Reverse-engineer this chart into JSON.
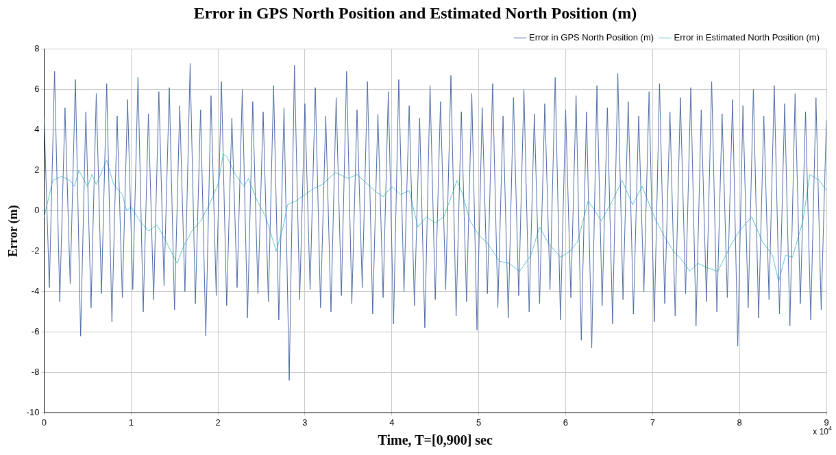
{
  "chart_data": {
    "type": "line",
    "title": "Error in GPS North Position and Estimated North Position (m)",
    "xlabel": "Time, T=[0,900] sec",
    "ylabel": "Error (m)",
    "xlim": [
      0,
      9
    ],
    "xticks": [
      0,
      1,
      2,
      3,
      4,
      5,
      6,
      7,
      8,
      9
    ],
    "ylim": [
      -10,
      8
    ],
    "yticks": [
      -10,
      -8,
      -6,
      -4,
      -2,
      0,
      2,
      4,
      6,
      8
    ],
    "grid": true,
    "legend": "top right",
    "annotations": [
      "x 10$^{4}$"
    ],
    "series": [
      {
        "name": "Error in GPS North Position (m)",
        "color": "#4a6aa5",
        "x": [
          0,
          0.06,
          0.12,
          0.18,
          0.24,
          0.3,
          0.36,
          0.42,
          0.48,
          0.54,
          0.6,
          0.66,
          0.72,
          0.78,
          0.84,
          0.9,
          0.96,
          1.02,
          1.08,
          1.14,
          1.2,
          1.26,
          1.32,
          1.38,
          1.44,
          1.5,
          1.56,
          1.62,
          1.68,
          1.74,
          1.8,
          1.86,
          1.92,
          1.98,
          2.04,
          2.1,
          2.16,
          2.22,
          2.28,
          2.34,
          2.4,
          2.46,
          2.52,
          2.58,
          2.64,
          2.7,
          2.76,
          2.82,
          2.88,
          2.94,
          3,
          3.06,
          3.12,
          3.18,
          3.24,
          3.3,
          3.36,
          3.42,
          3.48,
          3.54,
          3.6,
          3.66,
          3.72,
          3.78,
          3.84,
          3.9,
          3.96,
          4.02,
          4.08,
          4.14,
          4.2,
          4.26,
          4.32,
          4.38,
          4.44,
          4.5,
          4.56,
          4.62,
          4.68,
          4.74,
          4.8,
          4.86,
          4.92,
          4.98,
          5.04,
          5.1,
          5.16,
          5.22,
          5.28,
          5.34,
          5.4,
          5.46,
          5.52,
          5.58,
          5.64,
          5.7,
          5.76,
          5.82,
          5.88,
          5.94,
          6,
          6.06,
          6.12,
          6.18,
          6.24,
          6.3,
          6.36,
          6.42,
          6.48,
          6.54,
          6.6,
          6.66,
          6.72,
          6.78,
          6.84,
          6.9,
          6.96,
          7.02,
          7.08,
          7.14,
          7.2,
          7.26,
          7.32,
          7.38,
          7.44,
          7.5,
          7.56,
          7.62,
          7.68,
          7.74,
          7.8,
          7.86,
          7.92,
          7.98,
          8.04,
          8.1,
          8.16,
          8.22,
          8.28,
          8.34,
          8.4,
          8.46,
          8.52,
          8.58,
          8.64,
          8.7,
          8.76,
          8.82,
          8.88,
          8.94,
          9
        ],
        "values": [
          4.6,
          -3.8,
          6.9,
          -4.5,
          5.1,
          -3.6,
          6.5,
          -6.2,
          4.9,
          -4.8,
          5.8,
          -4.1,
          6.3,
          -5.5,
          4.7,
          -4.3,
          5.5,
          -3.9,
          6.6,
          -5.0,
          4.8,
          -4.4,
          5.9,
          -3.7,
          6.1,
          -4.9,
          5.2,
          -4.0,
          7.3,
          -4.6,
          5.0,
          -6.2,
          5.7,
          -4.2,
          6.4,
          -4.7,
          4.6,
          -3.8,
          6.0,
          -5.3,
          5.4,
          -4.1,
          4.9,
          -4.5,
          6.2,
          -5.4,
          5.1,
          -8.4,
          7.2,
          -4.4,
          5.3,
          -3.9,
          6.1,
          -4.8,
          4.7,
          -5.0,
          5.6,
          -4.2,
          6.9,
          -4.6,
          5.0,
          -3.8,
          6.4,
          -5.1,
          4.8,
          -4.3,
          5.9,
          -5.6,
          6.5,
          -4.0,
          5.2,
          -4.7,
          4.6,
          -5.8,
          6.2,
          -4.4,
          5.4,
          -3.9,
          6.7,
          -5.2,
          4.9,
          -4.5,
          5.8,
          -5.9,
          5.1,
          -4.1,
          6.3,
          -4.8,
          4.7,
          -5.3,
          5.6,
          -4.2,
          6.0,
          -5.0,
          4.8,
          -4.6,
          5.3,
          -3.9,
          6.6,
          -5.4,
          5.0,
          -4.3,
          5.7,
          -6.4,
          4.9,
          -6.8,
          6.2,
          -4.7,
          5.1,
          -5.6,
          6.8,
          -4.4,
          5.4,
          -5.1,
          4.7,
          -4.0,
          5.9,
          -5.5,
          6.3,
          -4.6,
          4.9,
          -5.2,
          5.6,
          -4.1,
          6.1,
          -5.7,
          5.0,
          -4.5,
          6.4,
          -5.0,
          4.8,
          -4.3,
          5.5,
          -6.7,
          5.2,
          -4.8,
          6.0,
          -5.3,
          4.7,
          -4.4,
          6.2,
          -5.1,
          5.3,
          -5.7,
          5.8,
          -4.6,
          4.9,
          -5.4,
          5.6,
          -4.9,
          4.5
        ]
      },
      {
        "name": "Error in Estimated North Position (m)",
        "color": "#5bc8d0",
        "x": [
          0,
          0.1,
          0.2,
          0.3,
          0.35,
          0.4,
          0.5,
          0.55,
          0.6,
          0.72,
          0.8,
          0.9,
          0.95,
          1.0,
          1.1,
          1.2,
          1.3,
          1.4,
          1.53,
          1.6,
          1.7,
          1.8,
          1.9,
          2.0,
          2.06,
          2.1,
          2.2,
          2.3,
          2.35,
          2.45,
          2.55,
          2.67,
          2.75,
          2.8,
          2.9,
          3.0,
          3.1,
          3.2,
          3.35,
          3.5,
          3.6,
          3.7,
          3.8,
          3.9,
          4.0,
          4.1,
          4.2,
          4.3,
          4.4,
          4.5,
          4.6,
          4.75,
          4.8,
          4.9,
          5.0,
          5.1,
          5.24,
          5.35,
          5.47,
          5.6,
          5.7,
          5.8,
          5.94,
          6.05,
          6.14,
          6.26,
          6.41,
          6.55,
          6.65,
          6.77,
          6.88,
          7.04,
          7.14,
          7.24,
          7.33,
          7.43,
          7.52,
          7.62,
          7.75,
          7.9,
          8.0,
          8.14,
          8.26,
          8.38,
          8.45,
          8.53,
          8.61,
          8.73,
          8.81,
          8.92,
          9
        ],
        "values": [
          -0.3,
          1.5,
          1.7,
          1.5,
          1.2,
          2.0,
          1.2,
          1.8,
          1.3,
          2.5,
          1.3,
          0.8,
          0.0,
          0.2,
          -0.5,
          -1.0,
          -0.7,
          -1.5,
          -2.6,
          -1.8,
          -1.0,
          -0.5,
          0.3,
          1.3,
          2.8,
          2.7,
          1.8,
          1.2,
          1.6,
          0.5,
          -0.3,
          -2.0,
          -0.8,
          0.3,
          0.5,
          0.8,
          1.1,
          1.3,
          1.9,
          1.6,
          1.8,
          1.4,
          1.0,
          0.7,
          1.2,
          0.8,
          1.0,
          -0.8,
          -0.3,
          -0.6,
          -0.3,
          1.5,
          1.0,
          -0.5,
          -1.2,
          -1.6,
          -2.5,
          -2.6,
          -3.0,
          -2.2,
          -0.8,
          -1.6,
          -2.3,
          -2.0,
          -1.5,
          0.5,
          -0.5,
          0.6,
          1.5,
          0.3,
          1.2,
          -0.5,
          -1.3,
          -2.0,
          -2.4,
          -3.0,
          -2.6,
          -2.8,
          -3.0,
          -1.7,
          -1.0,
          -0.3,
          -1.5,
          -2.2,
          -3.5,
          -2.2,
          -2.3,
          -0.5,
          1.8,
          1.5,
          1.0
        ]
      }
    ]
  }
}
